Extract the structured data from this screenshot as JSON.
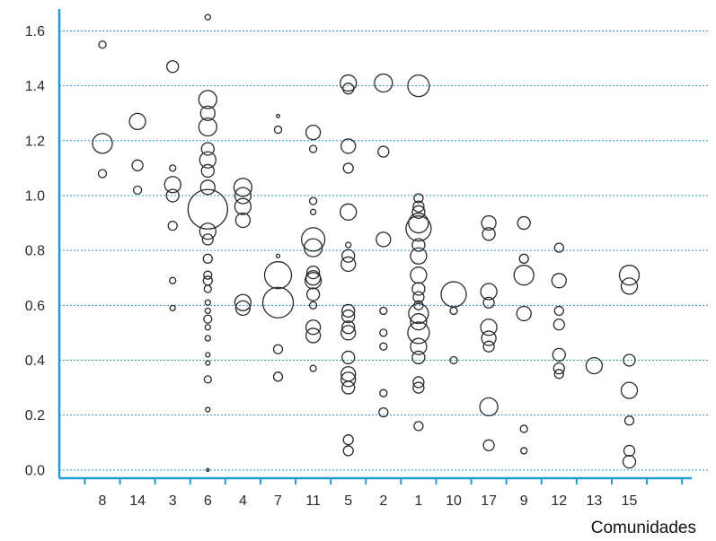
{
  "chart_data": {
    "type": "scatter",
    "xlabel": "Comunidades",
    "ylabel": "",
    "categories": [
      "8",
      "14",
      "3",
      "6",
      "4",
      "7",
      "11",
      "5",
      "2",
      "1",
      "10",
      "17",
      "9",
      "12",
      "13",
      "15"
    ],
    "y_ticks": [
      "0.0",
      "0.2",
      "0.4",
      "0.6",
      "0.8",
      "1.0",
      "1.2",
      "1.4",
      "1.6"
    ],
    "ylim": [
      -0.03,
      1.68
    ],
    "grid": true,
    "series": [
      {
        "points": [
          {
            "x": "8",
            "y": 1.55,
            "r": 4
          },
          {
            "x": "8",
            "y": 1.19,
            "r": 11
          },
          {
            "x": "8",
            "y": 1.08,
            "r": 4.5
          },
          {
            "x": "14",
            "y": 1.27,
            "r": 9
          },
          {
            "x": "14",
            "y": 1.11,
            "r": 6
          },
          {
            "x": "14",
            "y": 1.02,
            "r": 4.5
          },
          {
            "x": "3",
            "y": 1.47,
            "r": 6.5
          },
          {
            "x": "3",
            "y": 1.1,
            "r": 3.5
          },
          {
            "x": "3",
            "y": 1.04,
            "r": 9
          },
          {
            "x": "3",
            "y": 1.0,
            "r": 7
          },
          {
            "x": "3",
            "y": 0.89,
            "r": 5
          },
          {
            "x": "3",
            "y": 0.69,
            "r": 3.5
          },
          {
            "x": "3",
            "y": 0.59,
            "r": 3
          },
          {
            "x": "6",
            "y": 1.65,
            "r": 3
          },
          {
            "x": "6",
            "y": 1.35,
            "r": 10
          },
          {
            "x": "6",
            "y": 1.3,
            "r": 8
          },
          {
            "x": "6",
            "y": 1.25,
            "r": 10
          },
          {
            "x": "6",
            "y": 1.17,
            "r": 7
          },
          {
            "x": "6",
            "y": 1.13,
            "r": 9
          },
          {
            "x": "6",
            "y": 1.09,
            "r": 7
          },
          {
            "x": "6",
            "y": 1.03,
            "r": 8
          },
          {
            "x": "6",
            "y": 0.95,
            "r": 22
          },
          {
            "x": "6",
            "y": 0.87,
            "r": 9
          },
          {
            "x": "6",
            "y": 0.84,
            "r": 6
          },
          {
            "x": "6",
            "y": 0.77,
            "r": 5
          },
          {
            "x": "6",
            "y": 0.71,
            "r": 4.5
          },
          {
            "x": "6",
            "y": 0.69,
            "r": 5
          },
          {
            "x": "6",
            "y": 0.66,
            "r": 4
          },
          {
            "x": "6",
            "y": 0.61,
            "r": 3
          },
          {
            "x": "6",
            "y": 0.58,
            "r": 3
          },
          {
            "x": "6",
            "y": 0.55,
            "r": 4.5
          },
          {
            "x": "6",
            "y": 0.52,
            "r": 3
          },
          {
            "x": "6",
            "y": 0.48,
            "r": 3
          },
          {
            "x": "6",
            "y": 0.42,
            "r": 2.5
          },
          {
            "x": "6",
            "y": 0.39,
            "r": 2.5
          },
          {
            "x": "6",
            "y": 0.33,
            "r": 4
          },
          {
            "x": "6",
            "y": 0.22,
            "r": 2.5
          },
          {
            "x": "6",
            "y": 0.0,
            "r": 1.5
          },
          {
            "x": "4",
            "y": 1.03,
            "r": 10
          },
          {
            "x": "4",
            "y": 1.0,
            "r": 9
          },
          {
            "x": "4",
            "y": 0.96,
            "r": 9
          },
          {
            "x": "4",
            "y": 0.91,
            "r": 8
          },
          {
            "x": "4",
            "y": 0.61,
            "r": 9
          },
          {
            "x": "4",
            "y": 0.59,
            "r": 8
          },
          {
            "x": "7",
            "y": 1.29,
            "r": 1.8
          },
          {
            "x": "7",
            "y": 1.24,
            "r": 4
          },
          {
            "x": "7",
            "y": 0.78,
            "r": 2
          },
          {
            "x": "7",
            "y": 0.71,
            "r": 15
          },
          {
            "x": "7",
            "y": 0.61,
            "r": 17
          },
          {
            "x": "7",
            "y": 0.44,
            "r": 5
          },
          {
            "x": "7",
            "y": 0.34,
            "r": 5
          },
          {
            "x": "11",
            "y": 1.23,
            "r": 8
          },
          {
            "x": "11",
            "y": 1.17,
            "r": 4
          },
          {
            "x": "11",
            "y": 0.98,
            "r": 4
          },
          {
            "x": "11",
            "y": 0.94,
            "r": 3
          },
          {
            "x": "11",
            "y": 0.84,
            "r": 13
          },
          {
            "x": "11",
            "y": 0.81,
            "r": 10
          },
          {
            "x": "11",
            "y": 0.72,
            "r": 7
          },
          {
            "x": "11",
            "y": 0.7,
            "r": 8
          },
          {
            "x": "11",
            "y": 0.69,
            "r": 9
          },
          {
            "x": "11",
            "y": 0.64,
            "r": 7
          },
          {
            "x": "11",
            "y": 0.6,
            "r": 4
          },
          {
            "x": "11",
            "y": 0.52,
            "r": 8
          },
          {
            "x": "11",
            "y": 0.49,
            "r": 8
          },
          {
            "x": "11",
            "y": 0.37,
            "r": 3.5
          },
          {
            "x": "5",
            "y": 1.41,
            "r": 9
          },
          {
            "x": "5",
            "y": 1.39,
            "r": 6
          },
          {
            "x": "5",
            "y": 1.18,
            "r": 8
          },
          {
            "x": "5",
            "y": 1.1,
            "r": 5.5
          },
          {
            "x": "5",
            "y": 0.94,
            "r": 9
          },
          {
            "x": "5",
            "y": 0.82,
            "r": 3
          },
          {
            "x": "5",
            "y": 0.78,
            "r": 7
          },
          {
            "x": "5",
            "y": 0.75,
            "r": 8
          },
          {
            "x": "5",
            "y": 0.58,
            "r": 7
          },
          {
            "x": "5",
            "y": 0.56,
            "r": 7
          },
          {
            "x": "5",
            "y": 0.52,
            "r": 7
          },
          {
            "x": "5",
            "y": 0.5,
            "r": 8
          },
          {
            "x": "5",
            "y": 0.41,
            "r": 7
          },
          {
            "x": "5",
            "y": 0.35,
            "r": 8
          },
          {
            "x": "5",
            "y": 0.33,
            "r": 8
          },
          {
            "x": "5",
            "y": 0.3,
            "r": 7
          },
          {
            "x": "5",
            "y": 0.11,
            "r": 5.5
          },
          {
            "x": "5",
            "y": 0.07,
            "r": 5.5
          },
          {
            "x": "2",
            "y": 1.41,
            "r": 10
          },
          {
            "x": "2",
            "y": 1.16,
            "r": 6
          },
          {
            "x": "2",
            "y": 0.84,
            "r": 8
          },
          {
            "x": "2",
            "y": 0.58,
            "r": 4
          },
          {
            "x": "2",
            "y": 0.5,
            "r": 4
          },
          {
            "x": "2",
            "y": 0.45,
            "r": 4
          },
          {
            "x": "2",
            "y": 0.28,
            "r": 4
          },
          {
            "x": "2",
            "y": 0.21,
            "r": 5
          },
          {
            "x": "1",
            "y": 1.4,
            "r": 12
          },
          {
            "x": "1",
            "y": 0.99,
            "r": 5
          },
          {
            "x": "1",
            "y": 0.96,
            "r": 6
          },
          {
            "x": "1",
            "y": 0.94,
            "r": 7
          },
          {
            "x": "1",
            "y": 0.9,
            "r": 11
          },
          {
            "x": "1",
            "y": 0.88,
            "r": 14
          },
          {
            "x": "1",
            "y": 0.82,
            "r": 7
          },
          {
            "x": "1",
            "y": 0.78,
            "r": 9
          },
          {
            "x": "1",
            "y": 0.71,
            "r": 9
          },
          {
            "x": "1",
            "y": 0.66,
            "r": 7
          },
          {
            "x": "1",
            "y": 0.63,
            "r": 6
          },
          {
            "x": "1",
            "y": 0.6,
            "r": 5
          },
          {
            "x": "1",
            "y": 0.57,
            "r": 11
          },
          {
            "x": "1",
            "y": 0.54,
            "r": 9
          },
          {
            "x": "1",
            "y": 0.5,
            "r": 12
          },
          {
            "x": "1",
            "y": 0.45,
            "r": 9
          },
          {
            "x": "1",
            "y": 0.41,
            "r": 7
          },
          {
            "x": "1",
            "y": 0.32,
            "r": 6
          },
          {
            "x": "1",
            "y": 0.3,
            "r": 6
          },
          {
            "x": "1",
            "y": 0.16,
            "r": 5
          },
          {
            "x": "10",
            "y": 0.64,
            "r": 14
          },
          {
            "x": "10",
            "y": 0.58,
            "r": 4
          },
          {
            "x": "10",
            "y": 0.4,
            "r": 4
          },
          {
            "x": "17",
            "y": 0.9,
            "r": 8
          },
          {
            "x": "17",
            "y": 0.86,
            "r": 7
          },
          {
            "x": "17",
            "y": 0.65,
            "r": 9
          },
          {
            "x": "17",
            "y": 0.61,
            "r": 6
          },
          {
            "x": "17",
            "y": 0.52,
            "r": 9
          },
          {
            "x": "17",
            "y": 0.48,
            "r": 8
          },
          {
            "x": "17",
            "y": 0.45,
            "r": 6
          },
          {
            "x": "17",
            "y": 0.23,
            "r": 10
          },
          {
            "x": "17",
            "y": 0.09,
            "r": 6
          },
          {
            "x": "9",
            "y": 0.9,
            "r": 7
          },
          {
            "x": "9",
            "y": 0.77,
            "r": 5
          },
          {
            "x": "9",
            "y": 0.71,
            "r": 11
          },
          {
            "x": "9",
            "y": 0.57,
            "r": 8
          },
          {
            "x": "9",
            "y": 0.15,
            "r": 4
          },
          {
            "x": "9",
            "y": 0.07,
            "r": 3.5
          },
          {
            "x": "12",
            "y": 0.81,
            "r": 5
          },
          {
            "x": "12",
            "y": 0.69,
            "r": 8
          },
          {
            "x": "12",
            "y": 0.58,
            "r": 5
          },
          {
            "x": "12",
            "y": 0.53,
            "r": 6
          },
          {
            "x": "12",
            "y": 0.42,
            "r": 7
          },
          {
            "x": "12",
            "y": 0.37,
            "r": 6
          },
          {
            "x": "12",
            "y": 0.35,
            "r": 5
          },
          {
            "x": "13",
            "y": 0.38,
            "r": 9
          },
          {
            "x": "15",
            "y": 0.71,
            "r": 11
          },
          {
            "x": "15",
            "y": 0.67,
            "r": 9
          },
          {
            "x": "15",
            "y": 0.4,
            "r": 6.5
          },
          {
            "x": "15",
            "y": 0.29,
            "r": 9
          },
          {
            "x": "15",
            "y": 0.18,
            "r": 5
          },
          {
            "x": "15",
            "y": 0.07,
            "r": 6
          },
          {
            "x": "15",
            "y": 0.03,
            "r": 7
          }
        ]
      }
    ]
  }
}
